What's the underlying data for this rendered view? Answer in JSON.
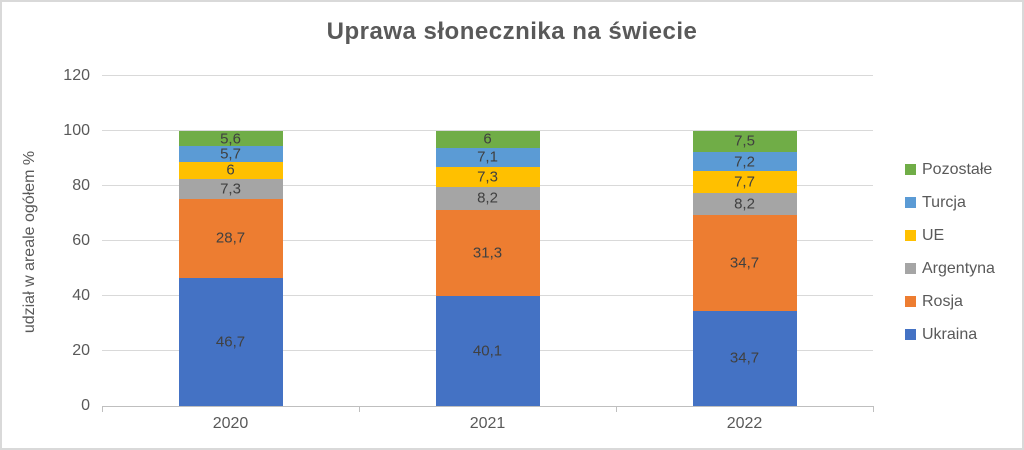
{
  "chart_data": {
    "type": "bar",
    "variant": "stacked-column",
    "title": "Uprawa słonecznika na świecie",
    "xlabel": "",
    "ylabel": "udział w areale ogółem %",
    "categories": [
      "2020",
      "2021",
      "2022"
    ],
    "series": [
      {
        "name": "Ukraina",
        "color": "#4472C4",
        "values": [
          46.7,
          40.1,
          34.7
        ]
      },
      {
        "name": "Rosja",
        "color": "#ED7D31",
        "values": [
          28.7,
          31.3,
          34.7
        ]
      },
      {
        "name": "Argentyna",
        "color": "#A5A5A5",
        "values": [
          7.3,
          8.2,
          8.2
        ]
      },
      {
        "name": "UE",
        "color": "#FFC000",
        "values": [
          6,
          7.3,
          7.7
        ]
      },
      {
        "name": "Turcja",
        "color": "#5B9BD5",
        "values": [
          5.7,
          7.1,
          7.2
        ]
      },
      {
        "name": "Pozostałe",
        "color": "#70AD47",
        "values": [
          5.6,
          6,
          7.5
        ]
      }
    ],
    "data_label_decimal_separator": ",",
    "y_ticks": [
      0,
      20,
      40,
      60,
      80,
      100,
      120
    ],
    "ylim": [
      0,
      120
    ],
    "grid": true,
    "legend_position": "right",
    "legend_order": [
      "Pozostałe",
      "Turcja",
      "UE",
      "Argentyna",
      "Rosja",
      "Ukraina"
    ]
  },
  "style": {
    "gridline_color": "#d9d9d9",
    "axis_line_color": "#bfbfbf",
    "text_color": "#595959",
    "data_label_color": "#404040",
    "frame_border_color": "#d9d9d9"
  }
}
